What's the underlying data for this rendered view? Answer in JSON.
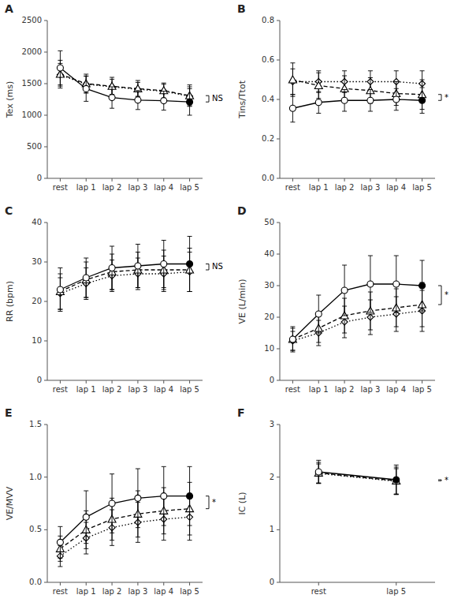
{
  "chart_data": [
    {
      "type": "line",
      "title": "A",
      "y_label": "Tex (ms)",
      "categories": [
        "rest",
        "lap 1",
        "lap 2",
        "lap 3",
        "lap 4",
        "lap 5"
      ],
      "ylim": [
        0,
        2500
      ],
      "yticks": [
        0,
        500,
        1000,
        1500,
        2000,
        2500
      ],
      "annotation": "NS",
      "series": [
        {
          "color": "#000000",
          "line_style": "solid",
          "marker": "circle",
          "values": [
            1750,
            1420,
            1280,
            1240,
            1230,
            1210
          ],
          "errors": [
            270,
            200,
            170,
            150,
            150,
            210
          ]
        },
        {
          "color": "#000000",
          "line_style": "dashed",
          "marker": "triangle",
          "values": [
            1650,
            1500,
            1460,
            1420,
            1390,
            1310
          ],
          "errors": [
            220,
            150,
            140,
            130,
            120,
            170
          ]
        },
        {
          "color": "#000000",
          "line_style": "dotted",
          "marker": "diamond",
          "values": [
            1640,
            1490,
            1450,
            1410,
            1380,
            1300
          ],
          "errors": [
            180,
            130,
            120,
            110,
            110,
            150
          ]
        }
      ]
    },
    {
      "type": "line",
      "title": "B",
      "y_label": "Tins/Ttot",
      "categories": [
        "rest",
        "lap 1",
        "lap 2",
        "lap 3",
        "lap 4",
        "lap 5"
      ],
      "ylim": [
        0.0,
        0.8
      ],
      "yticks": [
        {
          "value": 0.0,
          "label": "0.0"
        },
        0.2,
        0.4,
        0.6,
        0.8
      ],
      "annotation": "*",
      "series": [
        {
          "color": "#000000",
          "line_style": "solid",
          "marker": "circle",
          "values": [
            0.355,
            0.385,
            0.395,
            0.395,
            0.4,
            0.395
          ],
          "errors": [
            0.07,
            0.055,
            0.055,
            0.055,
            0.055,
            0.065
          ]
        },
        {
          "color": "#000000",
          "line_style": "dashed",
          "marker": "triangle",
          "values": [
            0.5,
            0.47,
            0.455,
            0.445,
            0.43,
            0.425
          ],
          "errors": [
            0.085,
            0.065,
            0.065,
            0.065,
            0.06,
            0.075
          ]
        },
        {
          "color": "#000000",
          "line_style": "dotted",
          "marker": "diamond",
          "values": [
            0.49,
            0.49,
            0.49,
            0.49,
            0.49,
            0.48
          ],
          "errors": [
            0.065,
            0.055,
            0.055,
            0.055,
            0.055,
            0.065
          ]
        }
      ]
    },
    {
      "type": "line",
      "title": "C",
      "y_label": "RR (bpm)",
      "categories": [
        "rest",
        "lap 1",
        "lap 2",
        "lap 3",
        "lap 4",
        "lap 5"
      ],
      "ylim": [
        0,
        40
      ],
      "yticks": [
        0,
        10,
        20,
        30,
        40
      ],
      "annotation": "NS",
      "series": [
        {
          "color": "#000000",
          "line_style": "solid",
          "marker": "circle",
          "values": [
            23.0,
            26.0,
            28.5,
            29.0,
            29.5,
            29.5
          ],
          "errors": [
            5.5,
            5.0,
            5.5,
            5.5,
            6.0,
            7.0
          ]
        },
        {
          "color": "#000000",
          "line_style": "dashed",
          "marker": "triangle",
          "values": [
            22.5,
            25.5,
            27.5,
            28.0,
            28.0,
            28.0
          ],
          "errors": [
            4.5,
            4.5,
            4.5,
            4.5,
            5.0,
            5.5
          ]
        },
        {
          "color": "#000000",
          "line_style": "dotted",
          "marker": "diamond",
          "values": [
            22.0,
            24.5,
            26.5,
            27.0,
            27.0,
            27.5
          ],
          "errors": [
            4.0,
            4.0,
            4.0,
            4.0,
            4.5,
            5.0
          ]
        }
      ]
    },
    {
      "type": "line",
      "title": "D",
      "y_label": "VE (L/min)",
      "categories": [
        "rest",
        "lap 1",
        "lap 2",
        "lap 3",
        "lap 4",
        "lap 5"
      ],
      "ylim": [
        0,
        50
      ],
      "yticks": [
        0,
        10,
        20,
        30,
        40,
        50
      ],
      "annotation": "*",
      "series": [
        {
          "color": "#000000",
          "line_style": "solid",
          "marker": "circle",
          "values": [
            13.0,
            21.0,
            28.5,
            30.5,
            30.5,
            30.0
          ],
          "errors": [
            4.0,
            6.0,
            8.0,
            9.0,
            9.0,
            8.0
          ]
        },
        {
          "color": "#000000",
          "line_style": "dashed",
          "marker": "triangle",
          "values": [
            13.0,
            16.5,
            20.5,
            22.0,
            23.0,
            24.0
          ],
          "errors": [
            3.5,
            4.5,
            5.5,
            6.0,
            6.0,
            7.0
          ]
        },
        {
          "color": "#000000",
          "line_style": "dotted",
          "marker": "diamond",
          "values": [
            12.5,
            15.0,
            18.5,
            20.0,
            21.0,
            22.0
          ],
          "errors": [
            3.0,
            4.0,
            5.0,
            5.5,
            5.5,
            6.5
          ]
        }
      ]
    },
    {
      "type": "line",
      "title": "E",
      "y_label": "VE/MVV",
      "categories": [
        "rest",
        "lap 1",
        "lap 2",
        "lap 3",
        "lap 4",
        "lap 5"
      ],
      "ylim": [
        0.0,
        1.5
      ],
      "yticks": [
        {
          "value": 0.0,
          "label": "0.0"
        },
        0.5,
        {
          "value": 1.0,
          "label": "1.0"
        },
        1.5
      ],
      "annotation": "*",
      "series": [
        {
          "color": "#000000",
          "line_style": "solid",
          "marker": "circle",
          "values": [
            0.38,
            0.62,
            0.75,
            0.8,
            0.82,
            0.82
          ],
          "errors": [
            0.15,
            0.25,
            0.28,
            0.28,
            0.28,
            0.28
          ]
        },
        {
          "color": "#000000",
          "line_style": "dashed",
          "marker": "triangle",
          "values": [
            0.32,
            0.5,
            0.6,
            0.65,
            0.68,
            0.7
          ],
          "errors": [
            0.12,
            0.18,
            0.2,
            0.22,
            0.22,
            0.25
          ]
        },
        {
          "color": "#000000",
          "line_style": "dotted",
          "marker": "diamond",
          "values": [
            0.25,
            0.42,
            0.52,
            0.57,
            0.6,
            0.62
          ],
          "errors": [
            0.1,
            0.15,
            0.17,
            0.19,
            0.2,
            0.22
          ]
        }
      ]
    },
    {
      "type": "line",
      "title": "F",
      "y_label": "IC (L)",
      "categories": [
        "rest",
        "lap 5"
      ],
      "ylim": [
        0,
        3
      ],
      "yticks": [
        0,
        1,
        2,
        3
      ],
      "annotation": "*",
      "series": [
        {
          "color": "#000000",
          "line_style": "solid",
          "marker": "circle",
          "values": [
            2.1,
            1.95
          ],
          "errors": [
            0.22,
            0.28
          ]
        },
        {
          "color": "#000000",
          "line_style": "dashed",
          "marker": "triangle",
          "values": [
            2.08,
            1.93
          ],
          "errors": [
            0.2,
            0.26
          ]
        },
        {
          "color": "#000000",
          "line_style": "dotted",
          "marker": "diamond",
          "values": [
            2.07,
            1.92
          ],
          "errors": [
            0.18,
            0.24
          ]
        }
      ]
    }
  ]
}
